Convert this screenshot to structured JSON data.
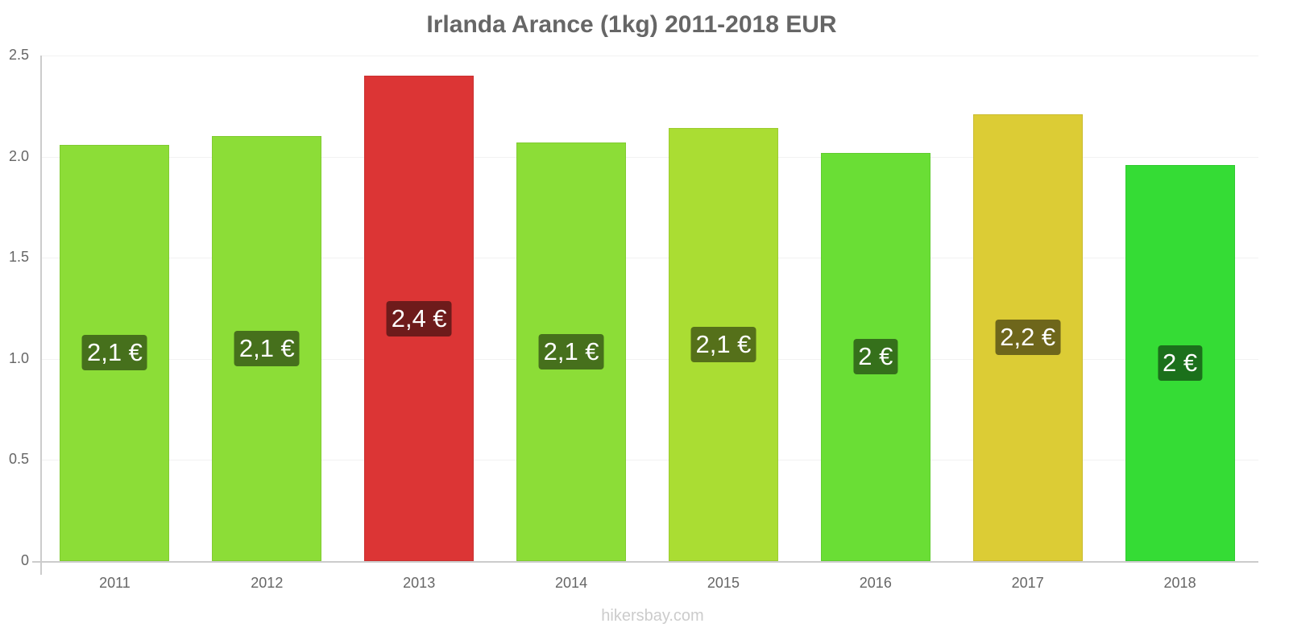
{
  "chart_data": {
    "type": "bar",
    "title": "Irlanda Arance (1kg) 2011-2018 EUR",
    "xlabel": "",
    "ylabel": "",
    "ylim": [
      0,
      2.5
    ],
    "yticks": [
      "0",
      "0.5",
      "1.0",
      "1.5",
      "2.0",
      "2.5"
    ],
    "categories": [
      "2011",
      "2012",
      "2013",
      "2014",
      "2015",
      "2016",
      "2017",
      "2018"
    ],
    "values": [
      2.06,
      2.1,
      2.4,
      2.07,
      2.14,
      2.02,
      2.21,
      1.96
    ],
    "data_labels": [
      "2,1 €",
      "2,1 €",
      "2,4 €",
      "2,1 €",
      "2,1 €",
      "2 €",
      "2,2 €",
      "2 €"
    ],
    "bar_colors": [
      "#8cdd37",
      "#8cdd37",
      "#dc3535",
      "#8cdd37",
      "#aadd33",
      "#6ade35",
      "#dccc35",
      "#35dc35"
    ],
    "label_bg_colors": [
      "#46701c",
      "#46701c",
      "#6e1b1b",
      "#46701c",
      "#55701a",
      "#35701b",
      "#6e661b",
      "#1b701b"
    ],
    "grid": true,
    "legend": null
  },
  "footer": "hikersbay.com"
}
